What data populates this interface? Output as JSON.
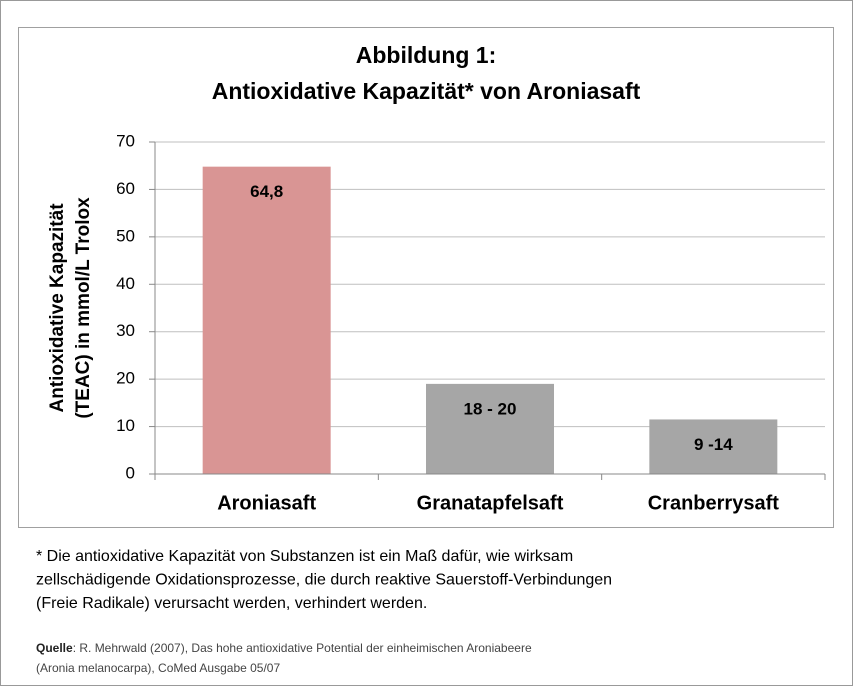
{
  "chart_data": {
    "type": "bar",
    "title": [
      "Abbildung 1:",
      "Antioxidative Kapazität* von Aroniasaft"
    ],
    "y_label": [
      "Antioxidative Kapazität",
      "(TEAC) in mmol/L Trolox"
    ],
    "categories": [
      "Aroniasaft",
      "Granatapfelsaft",
      "Cranberrysaft"
    ],
    "values": [
      64.8,
      19,
      11.5
    ],
    "value_labels": [
      "64,8",
      "18 - 20",
      "9 -14"
    ],
    "colors": [
      "#d99594",
      "#a6a6a6",
      "#a6a6a6"
    ],
    "ylim": [
      0,
      70
    ],
    "yticks": [
      0,
      10,
      20,
      30,
      40,
      50,
      60,
      70
    ],
    "grid": true
  },
  "footnote": [
    "* Die antioxidative Kapazität von Substanzen ist ein Maß dafür, wie wirksam",
    "zellschädigende Oxidationsprozesse, die durch reaktive Sauerstoff-Verbindungen",
    "(Freie Radikale) verursacht werden, verhindert werden."
  ],
  "source": {
    "label": "Quelle",
    "lines": [
      ": R. Mehrwald (2007), Das hohe antioxidative Potential der einheimischen Aroniabeere",
      "(Aronia melanocarpa), CoMed Ausgabe 05/07"
    ]
  }
}
